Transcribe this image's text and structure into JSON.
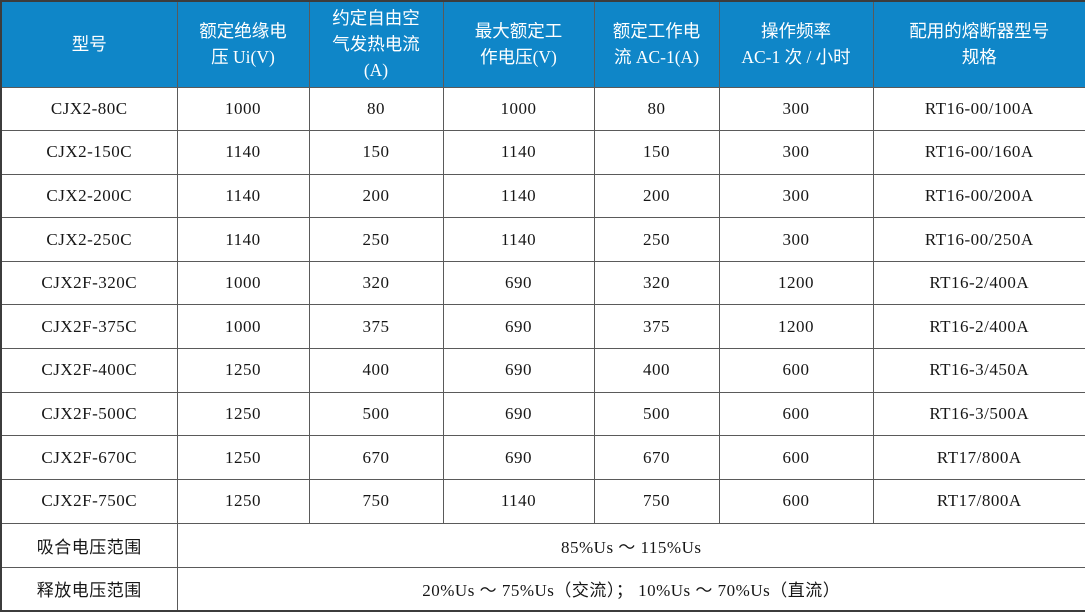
{
  "table": {
    "columns": [
      {
        "label": "型号"
      },
      {
        "label": "额定绝缘电\n压 Ui(V)"
      },
      {
        "label": "约定自由空\n气发热电流\n(A)"
      },
      {
        "label": "最大额定工\n作电压(V)"
      },
      {
        "label": "额定工作电\n流 AC-1(A)"
      },
      {
        "label": "操作频率\nAC-1 次 / 小时"
      },
      {
        "label": "配用的熔断器型号\n规格"
      }
    ],
    "rows": [
      [
        "CJX2-80C",
        "1000",
        "80",
        "1000",
        "80",
        "300",
        "RT16-00/100A"
      ],
      [
        "CJX2-150C",
        "1140",
        "150",
        "1140",
        "150",
        "300",
        "RT16-00/160A"
      ],
      [
        "CJX2-200C",
        "1140",
        "200",
        "1140",
        "200",
        "300",
        "RT16-00/200A"
      ],
      [
        "CJX2-250C",
        "1140",
        "250",
        "1140",
        "250",
        "300",
        "RT16-00/250A"
      ],
      [
        "CJX2F-320C",
        "1000",
        "320",
        "690",
        "320",
        "1200",
        "RT16-2/400A"
      ],
      [
        "CJX2F-375C",
        "1000",
        "375",
        "690",
        "375",
        "1200",
        "RT16-2/400A"
      ],
      [
        "CJX2F-400C",
        "1250",
        "400",
        "690",
        "400",
        "600",
        "RT16-3/450A"
      ],
      [
        "CJX2F-500C",
        "1250",
        "500",
        "690",
        "500",
        "600",
        "RT16-3/500A"
      ],
      [
        "CJX2F-670C",
        "1250",
        "670",
        "690",
        "670",
        "600",
        "RT17/800A"
      ],
      [
        "CJX2F-750C",
        "1250",
        "750",
        "1140",
        "750",
        "600",
        "RT17/800A"
      ]
    ],
    "footer_rows": [
      {
        "label": "吸合电压范围",
        "value": "85%Us ～ 115%Us"
      },
      {
        "label": "释放电压范围",
        "value": "20%Us ～ 75%Us（交流）； 10%Us ～ 70%Us（直流）"
      }
    ],
    "colors": {
      "header_bg": "#0f86c8",
      "header_text": "#ffffff",
      "body_text": "#161616",
      "border": "#5a5a5a"
    }
  }
}
